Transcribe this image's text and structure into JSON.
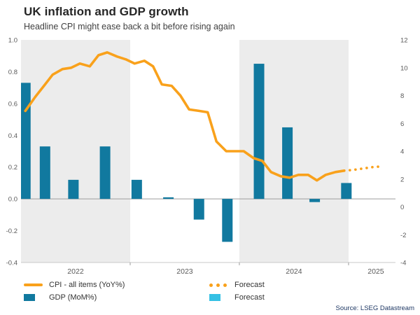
{
  "header": {
    "title": "UK inflation and GDP growth",
    "subtitle": "Headline CPI might ease back a bit before rising again"
  },
  "source": "Source: LSEG Datastream",
  "legend": {
    "cpi_label": "CPI - all items (YoY%)",
    "cpi_forecast_label": "Forecast",
    "gdp_label": "GDP (MoM%)",
    "gdp_forecast_label": "Forecast"
  },
  "chart_data": {
    "type": "combo_bar_line_dual_axis",
    "title": "UK inflation and GDP growth",
    "subtitle": "Headline CPI might ease back a bit before rising again",
    "x_domain_years": [
      2022.0,
      2025.43
    ],
    "shaded_year_bands": [
      2022,
      2024
    ],
    "year_ticks": [
      {
        "label": "2022",
        "t": 2022.5
      },
      {
        "label": "2023",
        "t": 2023.5
      },
      {
        "label": "2024",
        "t": 2024.5
      },
      {
        "label": "2025",
        "t": 2025.25
      }
    ],
    "left_axis": {
      "series": "GDP (MoM%)",
      "min": -0.4,
      "max": 1.0,
      "ticks": [
        1.0,
        0.8,
        0.6,
        0.4,
        0.2,
        0.0,
        -0.2,
        -0.4
      ]
    },
    "right_axis": {
      "series": "CPI - all items (YoY%)",
      "min": -4,
      "max": 12,
      "ticks": [
        12,
        10,
        8,
        6,
        4,
        2,
        0,
        -2,
        -4
      ]
    },
    "colors": {
      "cpi_line": "#F9A11B",
      "gdp_bar": "#11799F",
      "forecast_bar": "#35C0E4",
      "band": "#ECECEC",
      "zero_line": "#9D9D9D",
      "axis_line": "#C9C9C9",
      "tick_text": "#595959"
    },
    "gdp_bars": {
      "name": "GDP (MoM%)",
      "axis": "left",
      "points": [
        [
          2022.04,
          0.73
        ],
        [
          2022.22,
          0.33
        ],
        [
          2022.48,
          0.12
        ],
        [
          2022.77,
          0.33
        ],
        [
          2023.06,
          0.12
        ],
        [
          2023.35,
          0.01
        ],
        [
          2023.63,
          -0.13
        ],
        [
          2023.89,
          -0.27
        ],
        [
          2024.18,
          0.85
        ],
        [
          2024.44,
          0.45
        ],
        [
          2024.69,
          -0.02
        ],
        [
          2024.98,
          0.1
        ]
      ]
    },
    "cpi_line": {
      "name": "CPI - all items (YoY%)",
      "axis": "right",
      "points": [
        [
          2022.04,
          6.9
        ],
        [
          2022.13,
          7.9
        ],
        [
          2022.21,
          8.7
        ],
        [
          2022.29,
          9.5
        ],
        [
          2022.38,
          9.9
        ],
        [
          2022.46,
          10.0
        ],
        [
          2022.54,
          10.3
        ],
        [
          2022.63,
          10.1
        ],
        [
          2022.71,
          10.9
        ],
        [
          2022.79,
          11.1
        ],
        [
          2022.88,
          10.8
        ],
        [
          2022.96,
          10.6
        ],
        [
          2023.04,
          10.3
        ],
        [
          2023.13,
          10.5
        ],
        [
          2023.21,
          10.1
        ],
        [
          2023.29,
          8.8
        ],
        [
          2023.38,
          8.7
        ],
        [
          2023.46,
          8.0
        ],
        [
          2023.54,
          7.0
        ],
        [
          2023.63,
          6.9
        ],
        [
          2023.71,
          6.8
        ],
        [
          2023.79,
          4.7
        ],
        [
          2023.88,
          4.0
        ],
        [
          2023.96,
          4.0
        ],
        [
          2024.04,
          4.0
        ],
        [
          2024.13,
          3.5
        ],
        [
          2024.21,
          3.3
        ],
        [
          2024.29,
          2.5
        ],
        [
          2024.38,
          2.2
        ],
        [
          2024.46,
          2.1
        ],
        [
          2024.54,
          2.3
        ],
        [
          2024.63,
          2.3
        ],
        [
          2024.71,
          1.9
        ],
        [
          2024.79,
          2.3
        ],
        [
          2024.88,
          2.5
        ],
        [
          2024.96,
          2.6
        ]
      ]
    },
    "cpi_forecast": {
      "name": "Forecast",
      "points": [
        [
          2025.04,
          2.65
        ],
        [
          2025.13,
          2.75
        ],
        [
          2025.21,
          2.85
        ],
        [
          2025.29,
          2.9
        ]
      ]
    },
    "gdp_forecast": {
      "name": "Forecast",
      "points": []
    }
  }
}
